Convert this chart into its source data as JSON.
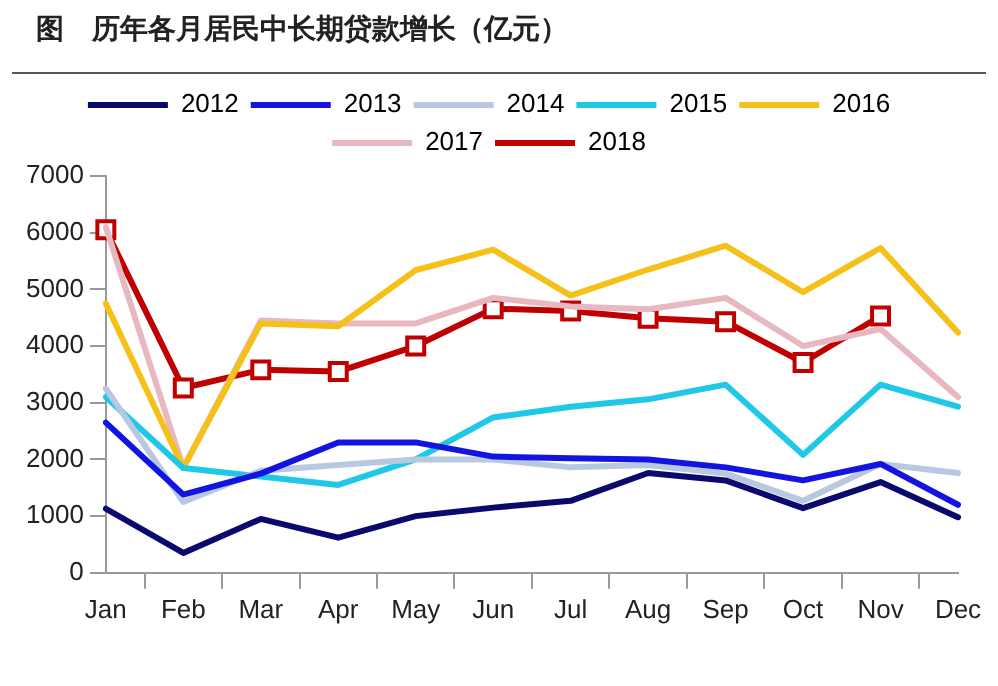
{
  "chart_data": {
    "type": "line",
    "title": "图　历年各月居民中长期贷款增长（亿元）",
    "categories": [
      "Jan",
      "Feb",
      "Mar",
      "Apr",
      "May",
      "Jun",
      "Jul",
      "Aug",
      "Sep",
      "Oct",
      "Nov",
      "Dec"
    ],
    "series": [
      {
        "name": "2012",
        "color": "#0a0a6e",
        "values": [
          1130,
          350,
          950,
          620,
          1000,
          1150,
          1270,
          1760,
          1630,
          1140,
          1600,
          980
        ]
      },
      {
        "name": "2013",
        "color": "#1414e0",
        "values": [
          2650,
          1380,
          1750,
          2300,
          2300,
          2050,
          2020,
          2000,
          1860,
          1630,
          1920,
          1200
        ]
      },
      {
        "name": "2014",
        "color": "#b8c8e0",
        "values": [
          3250,
          1250,
          1800,
          1900,
          2000,
          2000,
          1860,
          1900,
          1750,
          1270,
          1920,
          1760
        ]
      },
      {
        "name": "2015",
        "color": "#20c8e8",
        "values": [
          3100,
          1850,
          1700,
          1550,
          2000,
          2740,
          2930,
          3060,
          3320,
          2080,
          3320,
          2930
        ]
      },
      {
        "name": "2016",
        "color": "#f5c018",
        "values": [
          4750,
          1850,
          4400,
          4350,
          5340,
          5700,
          4890,
          5350,
          5770,
          4950,
          5730,
          4240
        ]
      },
      {
        "name": "2017",
        "color": "#e8b8c0",
        "values": [
          6100,
          1850,
          4450,
          4400,
          4400,
          4850,
          4700,
          4650,
          4850,
          4000,
          4300,
          3100
        ]
      },
      {
        "name": "2018",
        "color": "#c00000",
        "marker": "square",
        "values": [
          6050,
          3260,
          3580,
          3550,
          4000,
          4660,
          4620,
          4490,
          4430,
          3710,
          4530,
          null
        ]
      }
    ],
    "ylim": [
      0,
      7000
    ],
    "yticks": [
      0,
      1000,
      2000,
      3000,
      4000,
      5000,
      6000,
      7000
    ],
    "grid": false,
    "legend": "top",
    "marker": "none"
  }
}
